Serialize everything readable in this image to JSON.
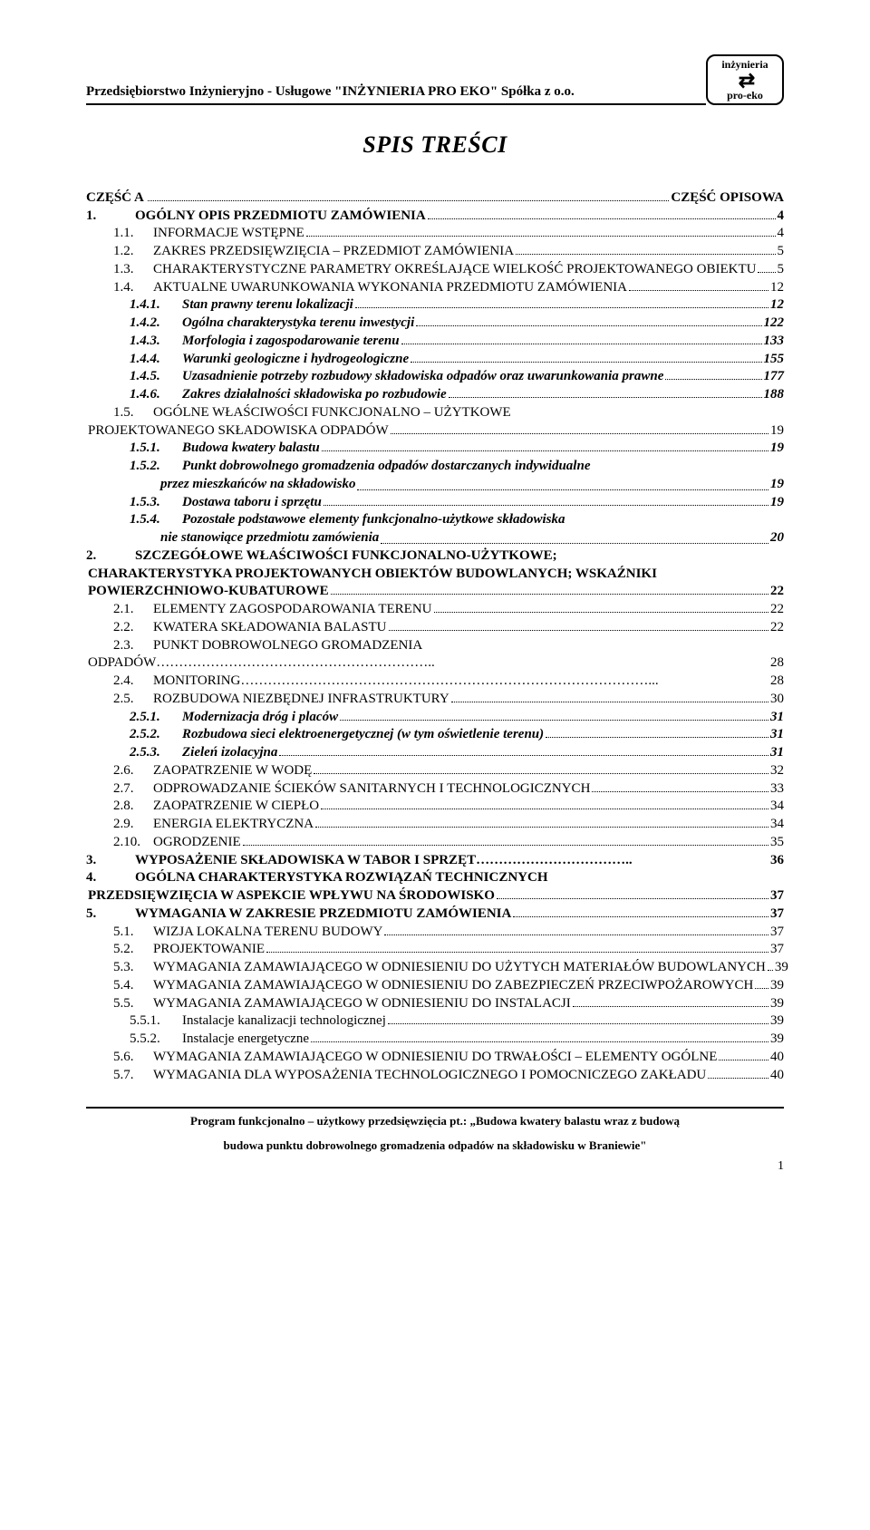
{
  "header": {
    "company": "Przedsiębiorstwo Inżynieryjno - Usługowe \"INŻYNIERIA PRO EKO\"  Spółka z o.o.",
    "logo_top": "inżynieria",
    "logo_bottom": "pro-eko"
  },
  "title": "SPIS TREŚCI",
  "toc": [
    {
      "num": "CZĘŚĆ A",
      "txt": "",
      "tail": "CZĘŚĆ OPISOWA",
      "bold": true,
      "level": 0,
      "pg": ""
    },
    {
      "num": "1.",
      "txt": "OGÓLNY OPIS PRZEDMIOTU ZAMÓWIENIA",
      "pg": "4",
      "bold": true,
      "level": 0
    },
    {
      "num": "1.1.",
      "txt": "INFORMACJE WSTĘPNE",
      "pg": "4",
      "sc": true,
      "level": 1
    },
    {
      "num": "1.2.",
      "txt": "ZAKRES PRZEDSIĘWZIĘCIA – PRZEDMIOT ZAMÓWIENIA",
      "pg": "5",
      "sc": true,
      "level": 1
    },
    {
      "num": "1.3.",
      "txt": "CHARAKTERYSTYCZNE PARAMETRY OKREŚLAJĄCE WIELKOŚĆ PROJEKTOWANEGO OBIEKTU",
      "pg": "5",
      "sc": true,
      "level": 1
    },
    {
      "num": "1.4.",
      "txt": "AKTUALNE UWARUNKOWANIA WYKONANIA PRZEDMIOTU ZAMÓWIENIA",
      "pg": "12",
      "sc": true,
      "level": 1
    },
    {
      "num": "1.4.1.",
      "txt": "Stan prawny terenu lokalizacji",
      "pg": "12",
      "italic": true,
      "bold": true,
      "level": 2
    },
    {
      "num": "1.4.2.",
      "txt": "Ogólna charakterystyka terenu inwestycji",
      "pg": "122",
      "italic": true,
      "bold": true,
      "level": 2
    },
    {
      "num": "1.4.3.",
      "txt": "Morfologia i zagospodarowanie terenu",
      "pg": "133",
      "italic": true,
      "bold": true,
      "level": 2
    },
    {
      "num": "1.4.4.",
      "txt": "Warunki geologiczne i hydrogeologiczne",
      "pg": "155",
      "italic": true,
      "bold": true,
      "level": 2
    },
    {
      "num": "1.4.5.",
      "txt": "Uzasadnienie potrzeby rozbudowy składowiska odpadów oraz uwarunkowania prawne",
      "pg": "177",
      "italic": true,
      "bold": true,
      "level": 2,
      "shortdots": true
    },
    {
      "num": "1.4.6.",
      "txt": "Zakres działalności składowiska po rozbudowie",
      "pg": "188",
      "italic": true,
      "bold": true,
      "level": 2
    },
    {
      "num": "1.5.",
      "txt": "OGÓLNE WŁAŚCIWOŚCI FUNKCJONALNO – UŻYTKOWE",
      "pg": "",
      "sc": true,
      "level": 1,
      "nodots": true
    },
    {
      "num": "",
      "txt": "PROJEKTOWANEGO SKŁADOWISKA ODPADÓW",
      "pg": "19",
      "sc": true,
      "level": 0
    },
    {
      "num": "1.5.1.",
      "txt": "Budowa kwatery balastu",
      "pg": "19",
      "italic": true,
      "bold": true,
      "level": 2
    },
    {
      "num": "1.5.2.",
      "txt": "Punkt dobrowolnego gromadzenia odpadów dostarczanych indywidualne",
      "pg": "",
      "italic": true,
      "bold": true,
      "level": 2,
      "nodots": true
    },
    {
      "cont": true,
      "txt": "przez mieszkańców na składowisko",
      "pg": "19",
      "level": 3
    },
    {
      "num": "1.5.3.",
      "txt": "Dostawa taboru i sprzętu",
      "pg": "19",
      "italic": true,
      "bold": true,
      "level": 2
    },
    {
      "num": "1.5.4.",
      "txt": "Pozostałe podstawowe elementy funkcjonalno-użytkowe składowiska",
      "pg": "",
      "italic": true,
      "bold": true,
      "level": 2,
      "nodots": true
    },
    {
      "cont": true,
      "txt": "nie stanowiące przedmiotu zamówienia",
      "pg": "20",
      "level": 3
    },
    {
      "num": "2.",
      "txt": "SZCZEGÓŁOWE WŁAŚCIWOŚCI FUNKCJONALNO-UŻYTKOWE;",
      "pg": "",
      "bold": true,
      "level": 0,
      "nodots": true
    },
    {
      "num": "",
      "txt": "CHARAKTERYSTYKA PROJEKTOWANYCH OBIEKTÓW BUDOWLANYCH; WSKAŹNIKI",
      "pg": "",
      "bold": true,
      "level": -1,
      "nodots": true
    },
    {
      "num": "",
      "txt": "POWIERZCHNIOWO-KUBATUROWE",
      "pg": "22",
      "bold": true,
      "level": -1
    },
    {
      "num": "2.1.",
      "txt": "ELEMENTY ZAGOSPODAROWANIA TERENU",
      "pg": "22",
      "sc": true,
      "level": 1
    },
    {
      "num": "2.2.",
      "txt": "KWATERA SKŁADOWANIA BALASTU",
      "pg": "22",
      "sc": true,
      "level": 1
    },
    {
      "num": "2.3.",
      "txt": "PUNKT DOBROWOLNEGO GROMADZENIA",
      "pg": "",
      "sc": true,
      "level": 1,
      "nodots": true
    },
    {
      "num": "",
      "txt": "ODPADÓW……………………………………………………..",
      "pg": "28",
      "sc": true,
      "level": 0,
      "shortdots": true,
      "nodots": true
    },
    {
      "num": "2.4.",
      "txt": "MONITORING………………………………………………………………………………...",
      "pg": "28",
      "sc": true,
      "level": 1,
      "shortdots": true,
      "nodots": true
    },
    {
      "num": "2.5.",
      "txt": "ROZBUDOWA NIEZBĘDNEJ INFRASTRUKTURY",
      "pg": "30",
      "sc": true,
      "level": 1
    },
    {
      "num": "2.5.1.",
      "txt": "Modernizacja dróg i placów",
      "pg": "31",
      "italic": true,
      "bold": true,
      "level": 2
    },
    {
      "num": "2.5.2.",
      "txt": "Rozbudowa sieci elektroenergetycznej (w tym oświetlenie terenu)",
      "pg": "31",
      "italic": true,
      "bold": true,
      "level": 2
    },
    {
      "num": "2.5.3.",
      "txt": "Zieleń izolacyjna",
      "pg": "31",
      "italic": true,
      "bold": true,
      "level": 2
    },
    {
      "num": "2.6.",
      "txt": "ZAOPATRZENIE W WODĘ",
      "pg": "32",
      "sc": true,
      "level": 1
    },
    {
      "num": "2.7.",
      "txt": "ODPROWADZANIE ŚCIEKÓW SANITARNYCH I TECHNOLOGICZNYCH",
      "pg": "33",
      "sc": true,
      "level": 1
    },
    {
      "num": "2.8.",
      "txt": "ZAOPATRZENIE W CIEPŁO",
      "pg": "34",
      "sc": true,
      "level": 1
    },
    {
      "num": "2.9.",
      "txt": "ENERGIA ELEKTRYCZNA",
      "pg": "34",
      "sc": true,
      "level": 1
    },
    {
      "num": "2.10.",
      "txt": "OGRODZENIE",
      "pg": "35",
      "sc": true,
      "level": 1
    },
    {
      "num": "3.",
      "txt": "WYPOSAŻENIE SKŁADOWISKA W TABOR I SPRZĘT……………………………..",
      "pg": "36",
      "bold": true,
      "level": 0,
      "nodots": true
    },
    {
      "num": "4.",
      "txt": "OGÓLNA CHARAKTERYSTYKA ROZWIĄZAŃ TECHNICZNYCH",
      "pg": "",
      "bold": true,
      "level": 0,
      "nodots": true
    },
    {
      "num": "",
      "txt": "PRZEDSIĘWZIĘCIA W ASPEKCIE WPŁYWU NA ŚRODOWISKO",
      "pg": "37",
      "bold": true,
      "level": -1
    },
    {
      "num": "5.",
      "txt": "WYMAGANIA W ZAKRESIE PRZEDMIOTU ZAMÓWIENIA",
      "pg": "37",
      "bold": true,
      "level": 0
    },
    {
      "num": "5.1.",
      "txt": "WIZJA LOKALNA TERENU BUDOWY",
      "pg": "37",
      "sc": true,
      "level": 1
    },
    {
      "num": "5.2.",
      "txt": "PROJEKTOWANIE",
      "pg": "37",
      "sc": true,
      "level": 1
    },
    {
      "num": "5.3.",
      "txt": "WYMAGANIA ZAMAWIAJĄCEGO W ODNIESIENIU DO UŻYTYCH MATERIAŁÓW BUDOWLANYCH",
      "pg": "39",
      "sc": true,
      "level": 1
    },
    {
      "num": "5.4.",
      "txt": "WYMAGANIA ZAMAWIAJĄCEGO W ODNIESIENIU DO ZABEZPIECZEŃ PRZECIWPOŻAROWYCH",
      "pg": "39",
      "sc": true,
      "level": 1
    },
    {
      "num": "5.5.",
      "txt": "WYMAGANIA ZAMAWIAJĄCEGO W ODNIESIENIU DO INSTALACJI",
      "pg": "39",
      "sc": true,
      "level": 1
    },
    {
      "num": "5.5.1.",
      "txt": "Instalacje kanalizacji technologicznej",
      "pg": "39",
      "level": 2
    },
    {
      "num": "5.5.2.",
      "txt": "Instalacje energetyczne",
      "pg": "39",
      "level": 2
    },
    {
      "num": "5.6.",
      "txt": "WYMAGANIA ZAMAWIAJĄCEGO W ODNIESIENIU DO TRWAŁOŚCI – ELEMENTY OGÓLNE",
      "pg": "40",
      "sc": true,
      "level": 1
    },
    {
      "num": "5.7.",
      "txt": "WYMAGANIA DLA WYPOSAŻENIA TECHNOLOGICZNEGO I POMOCNICZEGO ZAKŁADU",
      "pg": "40",
      "sc": true,
      "level": 1
    }
  ],
  "footer": {
    "line1": "Program funkcjonalno – użytkowy przedsięwzięcia pt.: „Budowa kwatery balastu wraz z budową",
    "line2": "budowa punktu dobrowolnego gromadzenia odpadów na składowisku w Braniewie\"",
    "page": "1"
  }
}
